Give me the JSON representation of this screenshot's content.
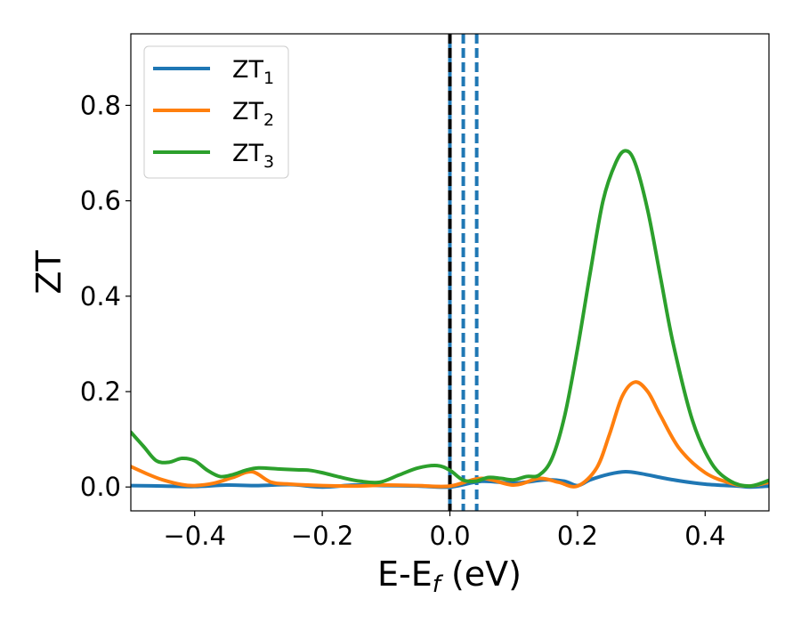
{
  "chart_data": {
    "type": "line",
    "xlabel": "E-E",
    "xlabel_sub": "f",
    "xlabel_unit": " (eV)",
    "ylabel": "ZT",
    "xlim": [
      -0.5,
      0.5
    ],
    "ylim": [
      -0.05,
      0.95
    ],
    "xticks": [
      -0.4,
      -0.2,
      0.0,
      0.2,
      0.4
    ],
    "xtick_labels": [
      "−0.4",
      "−0.2",
      "0.0",
      "0.2",
      "0.4"
    ],
    "yticks": [
      0.0,
      0.2,
      0.4,
      0.6,
      0.8
    ],
    "ytick_labels": [
      "0.0",
      "0.2",
      "0.4",
      "0.6",
      "0.8"
    ],
    "grid": false,
    "legend_position": "top-left",
    "vlines": [
      {
        "x": 0.0,
        "color": "#1f77b4",
        "style": "solid"
      },
      {
        "x": 0.0,
        "color": "#000000",
        "style": "dashed"
      },
      {
        "x": 0.021,
        "color": "#1f77b4",
        "style": "dashed"
      },
      {
        "x": 0.042,
        "color": "#1f77b4",
        "style": "dashed"
      }
    ],
    "series": [
      {
        "name": "ZT",
        "name_sub": "1",
        "color": "#1f77b4",
        "x": [
          -0.5,
          -0.45,
          -0.4,
          -0.35,
          -0.3,
          -0.25,
          -0.2,
          -0.15,
          -0.1,
          -0.05,
          0.0,
          0.05,
          0.1,
          0.15,
          0.18,
          0.2,
          0.22,
          0.25,
          0.275,
          0.3,
          0.35,
          0.4,
          0.45,
          0.47,
          0.5
        ],
        "y": [
          0.003,
          0.002,
          0.001,
          0.004,
          0.003,
          0.005,
          0.0,
          0.004,
          0.003,
          0.002,
          0.0,
          0.012,
          0.008,
          0.015,
          0.012,
          0.003,
          0.015,
          0.027,
          0.032,
          0.028,
          0.015,
          0.006,
          0.002,
          0.0,
          0.002
        ]
      },
      {
        "name": "ZT",
        "name_sub": "2",
        "color": "#ff7f0e",
        "x": [
          -0.5,
          -0.47,
          -0.45,
          -0.42,
          -0.4,
          -0.37,
          -0.34,
          -0.31,
          -0.28,
          -0.25,
          -0.2,
          -0.15,
          -0.1,
          -0.05,
          0.0,
          0.05,
          0.1,
          0.14,
          0.17,
          0.2,
          0.23,
          0.25,
          0.27,
          0.29,
          0.31,
          0.33,
          0.36,
          0.4,
          0.44,
          0.47,
          0.5
        ],
        "y": [
          0.043,
          0.025,
          0.015,
          0.005,
          0.003,
          0.008,
          0.02,
          0.032,
          0.01,
          0.006,
          0.003,
          0.002,
          0.004,
          0.003,
          0.002,
          0.018,
          0.004,
          0.018,
          0.01,
          0.002,
          0.04,
          0.11,
          0.19,
          0.22,
          0.2,
          0.15,
          0.08,
          0.03,
          0.008,
          0.002,
          0.01
        ]
      },
      {
        "name": "ZT",
        "name_sub": "3",
        "color": "#2ca02c",
        "x": [
          -0.5,
          -0.48,
          -0.46,
          -0.44,
          -0.42,
          -0.4,
          -0.38,
          -0.36,
          -0.34,
          -0.32,
          -0.3,
          -0.27,
          -0.24,
          -0.22,
          -0.2,
          -0.17,
          -0.14,
          -0.11,
          -0.08,
          -0.05,
          -0.02,
          0.0,
          0.02,
          0.04,
          0.06,
          0.08,
          0.1,
          0.12,
          0.14,
          0.16,
          0.18,
          0.2,
          0.22,
          0.24,
          0.26,
          0.275,
          0.29,
          0.31,
          0.33,
          0.35,
          0.38,
          0.41,
          0.44,
          0.47,
          0.5
        ],
        "y": [
          0.115,
          0.085,
          0.055,
          0.052,
          0.06,
          0.055,
          0.035,
          0.022,
          0.026,
          0.035,
          0.04,
          0.038,
          0.036,
          0.035,
          0.03,
          0.02,
          0.012,
          0.01,
          0.025,
          0.04,
          0.045,
          0.035,
          0.015,
          0.012,
          0.02,
          0.018,
          0.015,
          0.022,
          0.025,
          0.06,
          0.15,
          0.29,
          0.45,
          0.6,
          0.68,
          0.705,
          0.68,
          0.58,
          0.44,
          0.3,
          0.14,
          0.05,
          0.012,
          0.002,
          0.014
        ]
      }
    ]
  }
}
